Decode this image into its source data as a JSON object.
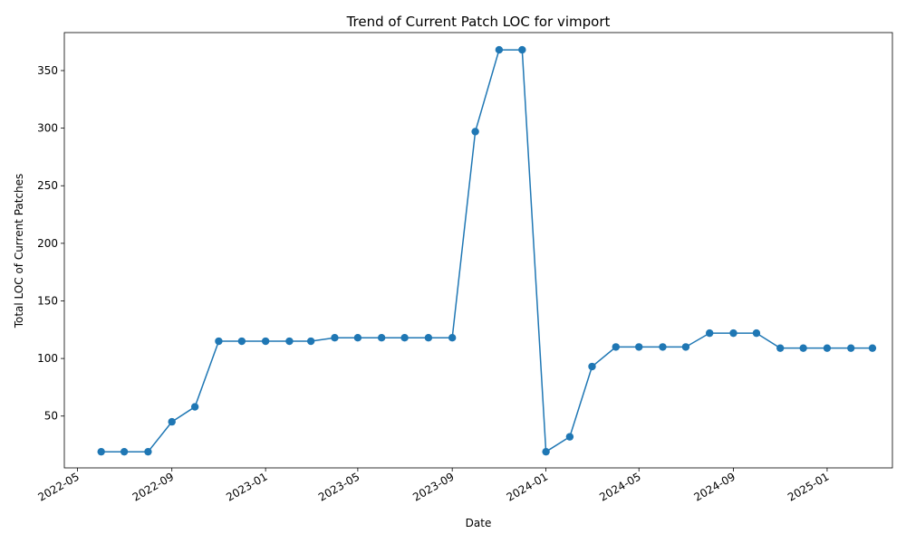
{
  "chart_data": {
    "type": "line",
    "title": "Trend of Current Patch LOC for vimport",
    "xlabel": "Date",
    "ylabel": "Total LOC of Current Patches",
    "x_tick_labels": [
      "2022-05",
      "2022-09",
      "2023-01",
      "2023-05",
      "2023-09",
      "2024-01",
      "2024-05",
      "2024-09",
      "2025-01"
    ],
    "y_tick_labels": [
      "50",
      "100",
      "150",
      "200",
      "250",
      "300",
      "350"
    ],
    "ylim": [
      5,
      383
    ],
    "xlim": [
      "2022-04-14",
      "2025-03-27"
    ],
    "grid": false,
    "legend": "none",
    "series": [
      {
        "color": "#1f77b4",
        "marker": "circle",
        "points": [
          {
            "x": "2022-06-01",
            "y": 19
          },
          {
            "x": "2022-07-01",
            "y": 19
          },
          {
            "x": "2022-08-01",
            "y": 19
          },
          {
            "x": "2022-09-01",
            "y": 45
          },
          {
            "x": "2022-10-01",
            "y": 58
          },
          {
            "x": "2022-11-01",
            "y": 115
          },
          {
            "x": "2022-12-01",
            "y": 115
          },
          {
            "x": "2023-01-01",
            "y": 115
          },
          {
            "x": "2023-02-01",
            "y": 115
          },
          {
            "x": "2023-03-01",
            "y": 115
          },
          {
            "x": "2023-04-01",
            "y": 118
          },
          {
            "x": "2023-05-01",
            "y": 118
          },
          {
            "x": "2023-06-01",
            "y": 118
          },
          {
            "x": "2023-07-01",
            "y": 118
          },
          {
            "x": "2023-08-01",
            "y": 118
          },
          {
            "x": "2023-09-01",
            "y": 118
          },
          {
            "x": "2023-10-01",
            "y": 297
          },
          {
            "x": "2023-11-01",
            "y": 368
          },
          {
            "x": "2023-12-01",
            "y": 368
          },
          {
            "x": "2024-01-01",
            "y": 19
          },
          {
            "x": "2024-02-01",
            "y": 32
          },
          {
            "x": "2024-03-01",
            "y": 93
          },
          {
            "x": "2024-04-01",
            "y": 110
          },
          {
            "x": "2024-05-01",
            "y": 110
          },
          {
            "x": "2024-06-01",
            "y": 110
          },
          {
            "x": "2024-07-01",
            "y": 110
          },
          {
            "x": "2024-08-01",
            "y": 122
          },
          {
            "x": "2024-09-01",
            "y": 122
          },
          {
            "x": "2024-10-01",
            "y": 122
          },
          {
            "x": "2024-11-01",
            "y": 109
          },
          {
            "x": "2024-12-01",
            "y": 109
          },
          {
            "x": "2025-01-01",
            "y": 109
          },
          {
            "x": "2025-02-01",
            "y": 109
          },
          {
            "x": "2025-03-01",
            "y": 109
          }
        ]
      }
    ]
  }
}
